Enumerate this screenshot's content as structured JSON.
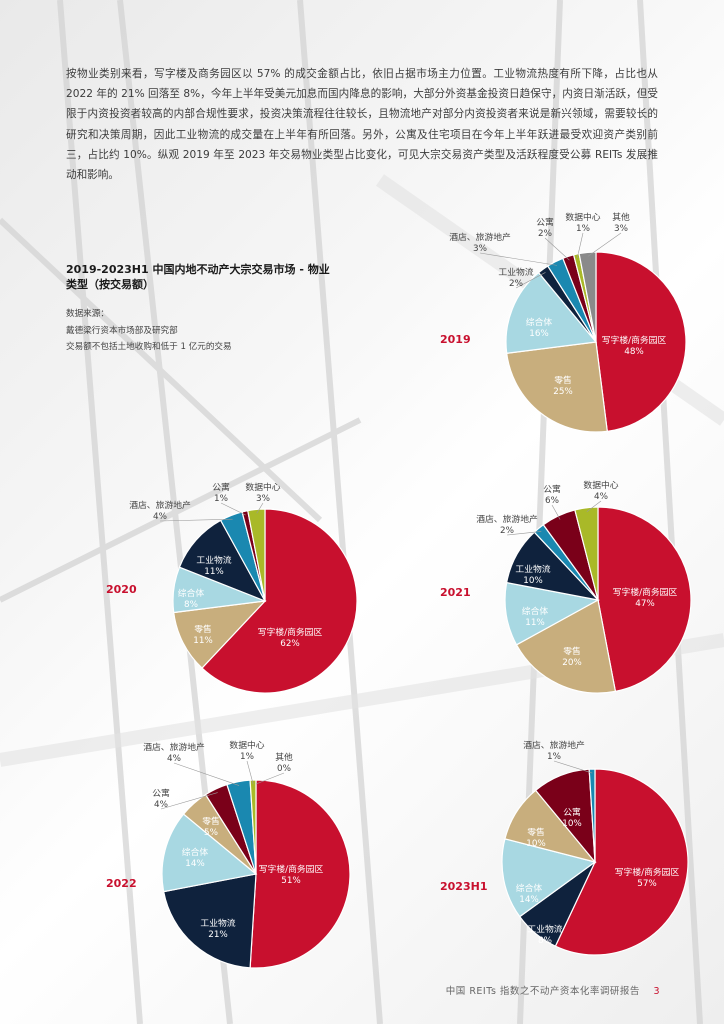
{
  "intro": {
    "paragraph": "按物业类别来看，写字楼及商务园区以 57% 的成交金额占比，依旧占据市场主力位置。工业物流热度有所下降，占比也从 2022 年的 21% 回落至 8%，今年上半年受美元加息而国内降息的影响，大部分外资基金投资日趋保守，内资日渐活跃，但受限于内资投资者较高的内部合规性要求，投资决策流程往往较长，且物流地产对部分内资投资者来说是新兴领域，需要较长的研究和决策周期，因此工业物流的成交量在上半年有所回落。另外，公寓及住宅项目在今年上半年跃进最受欢迎资产类别前三，占比约 10%。纵观 2019 年至 2023 年交易物业类型占比变化，可见大宗交易资产类型及活跃程度受公募 REITs 发展推动和影响。"
  },
  "side": {
    "title": "2019-2023H1 中国内地不动产大宗交易市场 - 物业类型（按交易额）",
    "source_label": "数据来源：",
    "source_1": "戴德梁行资本市场部及研究部",
    "source_2": "交易额不包括土地收购和低于 1 亿元的交易"
  },
  "colors": {
    "写字楼/商务园区": "#c8102e",
    "零售": "#c8ae7d",
    "综合体": "#a8d8e2",
    "工业物流": "#0f223d",
    "酒店、旅游地产": "#1a88b0",
    "公寓": "#7a0019",
    "数据中心": "#a9b928",
    "其他": "#8a8a8a"
  },
  "chart_data": [
    {
      "type": "pie",
      "title": "2019",
      "slices": [
        {
          "label": "写字楼/商务园区",
          "value": 48,
          "display": "48%"
        },
        {
          "label": "零售",
          "value": 25,
          "display": "25%"
        },
        {
          "label": "综合体",
          "value": 16,
          "display": "16%"
        },
        {
          "label": "工业物流",
          "value": 2,
          "display": "2%"
        },
        {
          "label": "酒店、旅游地产",
          "value": 3,
          "display": "3%"
        },
        {
          "label": "公寓",
          "value": 2,
          "display": "2%"
        },
        {
          "label": "数据中心",
          "value": 1,
          "display": "1%"
        },
        {
          "label": "其他",
          "value": 3,
          "display": "3%"
        }
      ]
    },
    {
      "type": "pie",
      "title": "2020",
      "slices": [
        {
          "label": "写字楼/商务园区",
          "value": 62,
          "display": "62%"
        },
        {
          "label": "零售",
          "value": 11,
          "display": "11%"
        },
        {
          "label": "综合体",
          "value": 8,
          "display": "8%"
        },
        {
          "label": "工业物流",
          "value": 11,
          "display": "11%"
        },
        {
          "label": "酒店、旅游地产",
          "value": 4,
          "display": "4%"
        },
        {
          "label": "公寓",
          "value": 1,
          "display": "1%"
        },
        {
          "label": "数据中心",
          "value": 3,
          "display": "3%"
        }
      ]
    },
    {
      "type": "pie",
      "title": "2021",
      "slices": [
        {
          "label": "写字楼/商务园区",
          "value": 47,
          "display": "47%"
        },
        {
          "label": "零售",
          "value": 20,
          "display": "20%"
        },
        {
          "label": "综合体",
          "value": 11,
          "display": "11%"
        },
        {
          "label": "工业物流",
          "value": 10,
          "display": "10%"
        },
        {
          "label": "酒店、旅游地产",
          "value": 2,
          "display": "2%"
        },
        {
          "label": "公寓",
          "value": 6,
          "display": "6%"
        },
        {
          "label": "数据中心",
          "value": 4,
          "display": "4%"
        }
      ]
    },
    {
      "type": "pie",
      "title": "2022",
      "slices": [
        {
          "label": "写字楼/商务园区",
          "value": 51,
          "display": "51%"
        },
        {
          "label": "工业物流",
          "value": 21,
          "display": "21%"
        },
        {
          "label": "综合体",
          "value": 14,
          "display": "14%"
        },
        {
          "label": "零售",
          "value": 5,
          "display": "5%"
        },
        {
          "label": "公寓",
          "value": 4,
          "display": "4%"
        },
        {
          "label": "酒店、旅游地产",
          "value": 4,
          "display": "4%"
        },
        {
          "label": "数据中心",
          "value": 1,
          "display": "1%"
        },
        {
          "label": "其他",
          "value": 0,
          "display": "0%"
        }
      ]
    },
    {
      "type": "pie",
      "title": "2023H1",
      "slices": [
        {
          "label": "写字楼/商务园区",
          "value": 57,
          "display": "57%"
        },
        {
          "label": "工业物流",
          "value": 8,
          "display": "8%"
        },
        {
          "label": "综合体",
          "value": 14,
          "display": "14%"
        },
        {
          "label": "零售",
          "value": 10,
          "display": "10%"
        },
        {
          "label": "公寓",
          "value": 10,
          "display": "10%"
        },
        {
          "label": "酒店、旅游地产",
          "value": 1,
          "display": "1%"
        }
      ]
    }
  ],
  "footer": {
    "text": "中国 REITs 指数之不动产资本化率调研报告",
    "page": "3"
  }
}
